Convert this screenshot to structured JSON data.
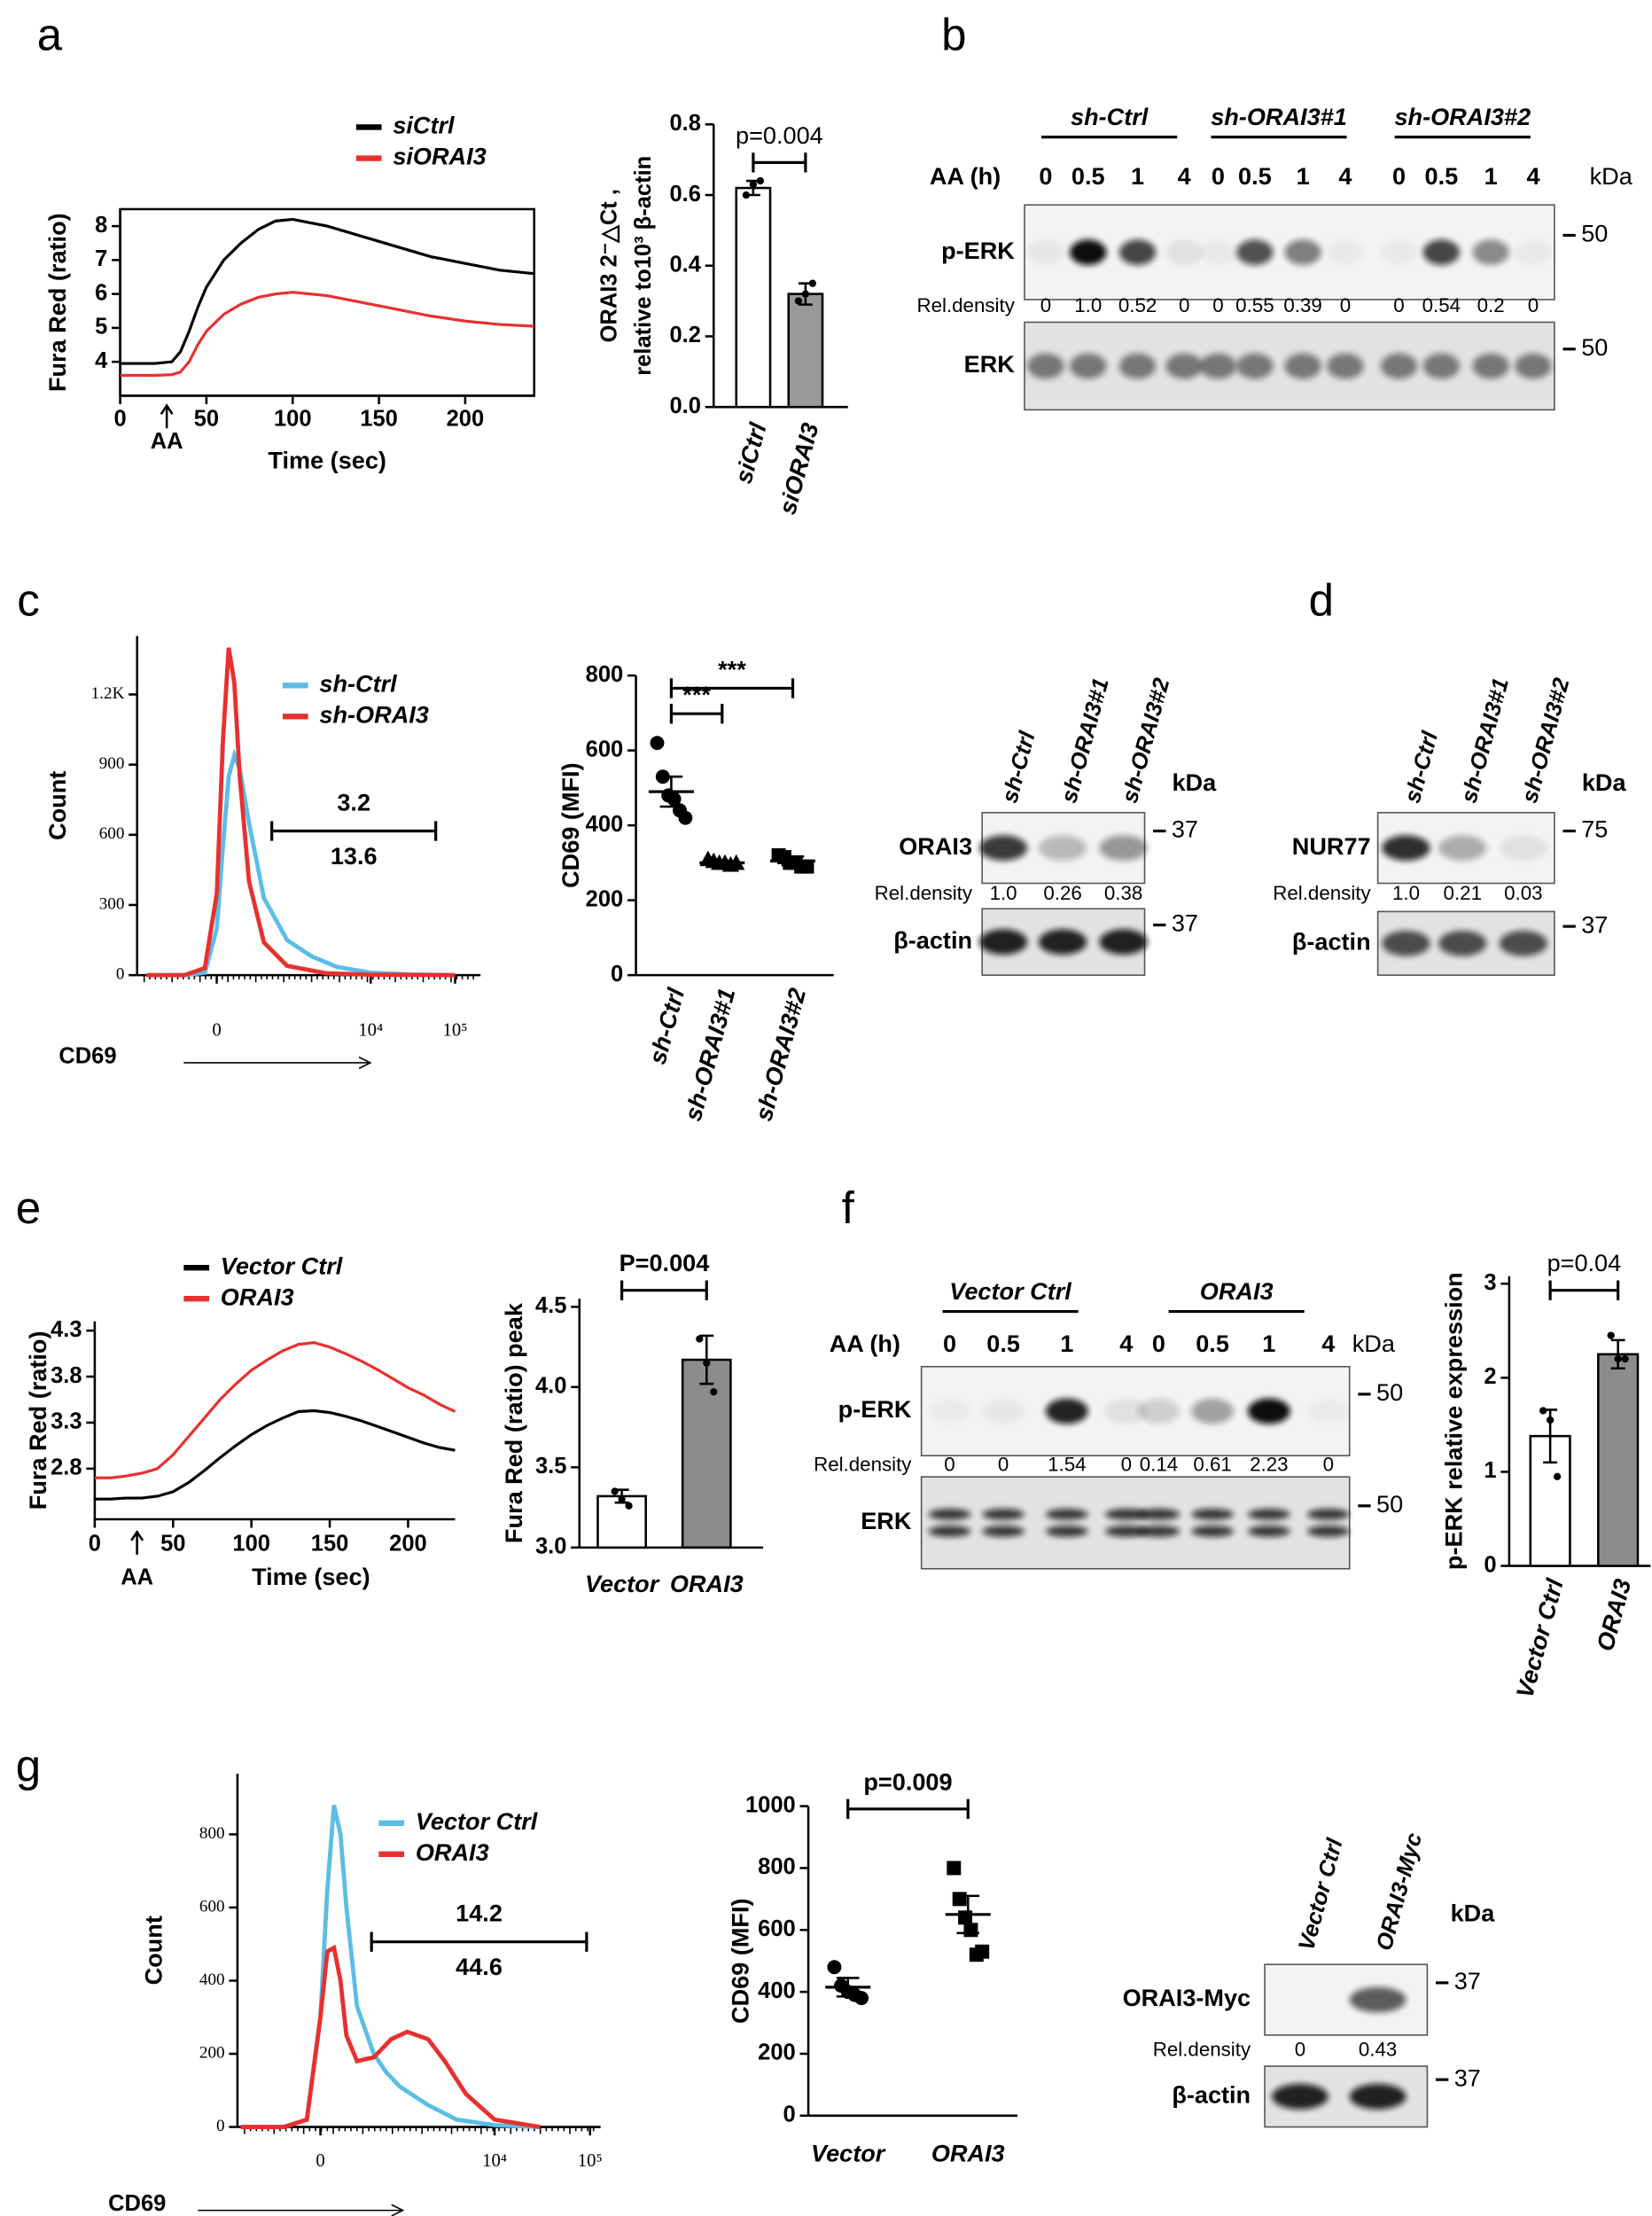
{
  "panels": [
    "a",
    "b",
    "c",
    "d",
    "e",
    "f",
    "g"
  ],
  "chart_data": [
    {
      "type": "line",
      "xlabel": "Time (sec)",
      "ylabel": "Fura Red (ratio)",
      "x": [
        0,
        10,
        20,
        30,
        35,
        40,
        45,
        50,
        60,
        70,
        80,
        90,
        100,
        110,
        120,
        140,
        160,
        180,
        200,
        220,
        240
      ],
      "series": [
        {
          "name": "siCtrl",
          "color": "#000000",
          "values": [
            3.95,
            3.95,
            3.95,
            4.0,
            4.3,
            4.9,
            5.6,
            6.2,
            7.0,
            7.5,
            7.9,
            8.15,
            8.2,
            8.1,
            8.0,
            7.7,
            7.4,
            7.1,
            6.9,
            6.7,
            6.6
          ]
        },
        {
          "name": "siORAI3",
          "color": "#e8302f",
          "values": [
            3.6,
            3.6,
            3.6,
            3.62,
            3.7,
            4.0,
            4.5,
            4.9,
            5.4,
            5.7,
            5.9,
            6.0,
            6.05,
            6.0,
            5.95,
            5.75,
            5.55,
            5.35,
            5.2,
            5.1,
            5.05
          ]
        }
      ],
      "xlim": [
        0,
        240
      ],
      "xticks": [
        0,
        50,
        100,
        150,
        200
      ],
      "ylim": [
        3.0,
        8.5
      ],
      "yticks": [
        4,
        5,
        6,
        7,
        8
      ],
      "annotations": [
        {
          "text": "AA",
          "x": 27
        }
      ]
    },
    {
      "type": "bar",
      "ylabel": [
        "ORAI3  2⁻△Ct ,",
        "relative to10³ β-actin"
      ],
      "categories": [
        "siCtrl",
        "siORAI3"
      ],
      "values": [
        0.62,
        0.32
      ],
      "errors": [
        0.02,
        0.03
      ],
      "points": [
        [
          0.6,
          0.63,
          0.64
        ],
        [
          0.3,
          0.32,
          0.35
        ]
      ],
      "colors": [
        "#ffffff",
        "#999999"
      ],
      "ylim": [
        0,
        0.8
      ],
      "yticks": [
        {
          "value": 0,
          "label": "0.0"
        },
        0.2,
        0.4,
        0.6,
        0.8
      ],
      "annotations": [
        "p=0.004"
      ]
    },
    {
      "type": "curve",
      "xlabel": "CD69",
      "ylabel": "Count",
      "xscale": "asinh",
      "xscale_cofactor": 300,
      "xlim": [
        -1300,
        200000
      ],
      "xticks": [
        0,
        {
          "value": 10000,
          "label": "10⁴"
        },
        {
          "value": 100000,
          "label": "10⁵"
        }
      ],
      "ylim": [
        0,
        1450
      ],
      "yticks": [
        0,
        300,
        600,
        900,
        {
          "value": 1200,
          "label": "1.2K"
        }
      ],
      "series": [
        {
          "name": "sh-Ctrl",
          "color": "#5bbde6",
          "x": [
            -1000,
            -300,
            -100,
            0,
            50,
            100,
            150,
            200,
            300,
            500,
            1000,
            2000,
            4000,
            10000,
            30000,
            100000
          ],
          "values": [
            0,
            0,
            10,
            200,
            550,
            850,
            940,
            880,
            650,
            330,
            150,
            80,
            35,
            10,
            3,
            0
          ]
        },
        {
          "name": "sh-ORAI3",
          "color": "#e8302f",
          "x": [
            -1000,
            -300,
            -100,
            0,
            50,
            100,
            150,
            200,
            300,
            500,
            1000,
            3000,
            10000,
            100000
          ],
          "values": [
            0,
            0,
            30,
            350,
            1000,
            1400,
            1250,
            850,
            400,
            140,
            40,
            8,
            2,
            0
          ]
        }
      ],
      "gate": {
        "range": [
          640,
          59000
        ],
        "labels": [
          "3.2",
          "13.6"
        ]
      }
    },
    {
      "type": "dot",
      "ylabel": "CD69 (MFI)",
      "categories": [
        "sh-Ctrl",
        "sh-ORAI3#1",
        "sh-ORAI3#2"
      ],
      "values": [
        490,
        300,
        305
      ],
      "errors": [
        40,
        5,
        12
      ],
      "points": [
        [
          620,
          530,
          480,
          470,
          440,
          420
        ],
        [
          310,
          305,
          300,
          300,
          295,
          300
        ],
        [
          320,
          315,
          300,
          300,
          290,
          290
        ]
      ],
      "ylim": [
        0,
        800
      ],
      "yticks": [
        0,
        200,
        400,
        600,
        800
      ],
      "annotations": [
        "***",
        "***"
      ]
    },
    {
      "type": "line",
      "xlabel": "Time (sec)",
      "ylabel": "Fura Red (ratio)",
      "x": [
        0,
        10,
        20,
        30,
        40,
        50,
        60,
        70,
        80,
        90,
        100,
        110,
        120,
        130,
        140,
        150,
        160,
        170,
        180,
        190,
        200,
        210,
        220,
        230
      ],
      "series": [
        {
          "name": "Vector Ctrl",
          "color": "#000000",
          "values": [
            2.47,
            2.47,
            2.48,
            2.48,
            2.5,
            2.55,
            2.65,
            2.78,
            2.92,
            3.05,
            3.17,
            3.27,
            3.35,
            3.42,
            3.43,
            3.41,
            3.37,
            3.32,
            3.26,
            3.2,
            3.14,
            3.08,
            3.03,
            3.0
          ]
        },
        {
          "name": "ORAI3",
          "color": "#e8302f",
          "values": [
            2.7,
            2.7,
            2.72,
            2.75,
            2.8,
            2.95,
            3.15,
            3.35,
            3.55,
            3.72,
            3.87,
            3.98,
            4.08,
            4.15,
            4.17,
            4.12,
            4.05,
            3.97,
            3.88,
            3.78,
            3.68,
            3.6,
            3.5,
            3.42
          ]
        }
      ],
      "xlim": [
        0,
        230
      ],
      "xticks": [
        0,
        50,
        100,
        150,
        200
      ],
      "ylim": [
        2.25,
        4.4
      ],
      "yticks": [
        2.8,
        3.3,
        3.8,
        4.3
      ],
      "annotations": [
        {
          "text": "AA",
          "x": 27
        }
      ]
    },
    {
      "type": "bar",
      "ylabel": "Fura Red (ratio) peak",
      "categories": [
        "Vector",
        "ORAI3"
      ],
      "values": [
        3.32,
        4.17
      ],
      "errors": [
        0.04,
        0.15
      ],
      "points": [
        [
          3.35,
          3.3,
          3.26
        ],
        [
          4.3,
          4.15,
          3.97
        ]
      ],
      "colors": [
        "#ffffff",
        "#8c8c8c"
      ],
      "ylim": [
        3.0,
        4.55
      ],
      "yticks": [
        {
          "value": 3,
          "label": "3.0"
        },
        3.5,
        {
          "value": 4,
          "label": "4.0"
        },
        4.5
      ],
      "annotations": [
        "P=0.004"
      ]
    },
    {
      "type": "bar",
      "ylabel": "p-ERK relative expression",
      "categories": [
        "Vector Ctrl",
        "ORAI3"
      ],
      "values": [
        1.38,
        2.25
      ],
      "errors": [
        0.28,
        0.15
      ],
      "points": [
        [
          1.65,
          1.55,
          0.95
        ],
        [
          2.45,
          2.2,
          2.2
        ]
      ],
      "colors": [
        "#ffffff",
        "#8c8c8c"
      ],
      "ylim": [
        0,
        3.08
      ],
      "yticks": [
        0,
        1,
        2,
        3
      ],
      "annotations": [
        "p=0.04"
      ]
    },
    {
      "type": "curve",
      "xlabel": "CD69",
      "ylabel": "Count",
      "xscale": "asinh",
      "xscale_cofactor": 300,
      "xlim": [
        -1090,
        129000
      ],
      "xticks": [
        0,
        {
          "value": 10000,
          "label": "10⁴"
        },
        {
          "value": 100000,
          "label": "10⁵"
        }
      ],
      "ylim": [
        0,
        966
      ],
      "yticks": [
        0,
        200,
        400,
        600,
        800
      ],
      "series": [
        {
          "name": "Vector Ctrl",
          "color": "#5bbde6",
          "x": [
            -1000,
            -300,
            -100,
            0,
            50,
            100,
            150,
            200,
            300,
            500,
            700,
            1000,
            2000,
            4000,
            10000,
            30000
          ],
          "values": [
            0,
            0,
            20,
            300,
            650,
            880,
            800,
            600,
            330,
            200,
            150,
            110,
            60,
            20,
            5,
            0
          ]
        },
        {
          "name": "ORAI3",
          "color": "#e8302f",
          "x": [
            -1000,
            -300,
            -100,
            0,
            50,
            100,
            150,
            200,
            300,
            500,
            800,
            1200,
            2000,
            3000,
            5000,
            10000,
            30000
          ],
          "values": [
            0,
            0,
            20,
            300,
            480,
            490,
            400,
            250,
            180,
            190,
            240,
            260,
            240,
            180,
            90,
            20,
            0
          ]
        }
      ],
      "gate": {
        "range": [
          470,
          92000
        ],
        "labels": [
          "14.2",
          "44.6"
        ]
      }
    },
    {
      "type": "dot",
      "ylabel": "CD69 (MFI)",
      "categories": [
        "Vector",
        "ORAI3"
      ],
      "values": [
        415,
        650
      ],
      "errors": [
        30,
        60
      ],
      "points": [
        [
          480,
          420,
          400,
          390,
          380
        ],
        [
          800,
          700,
          640,
          600,
          520,
          530
        ]
      ],
      "ylim": [
        0,
        1000
      ],
      "yticks": [
        0,
        200,
        400,
        600,
        800,
        1000
      ],
      "annotations": [
        "p=0.009"
      ]
    }
  ],
  "blots": [
    {
      "groups": [
        "sh-Ctrl",
        "sh-ORAI3#1",
        "sh-ORAI3#2"
      ],
      "lane_header": "AA (h)",
      "lanes": [
        "0",
        "0.5",
        "1",
        "4",
        "0",
        "0.5",
        "1",
        "4",
        "0",
        "0.5",
        "1",
        "4"
      ],
      "kda": "kDa",
      "rows": [
        {
          "label": "p-ERK",
          "marker": "50",
          "density_label": "Rel.density",
          "densities": [
            "0",
            "1.0",
            "0.52",
            "0",
            "0",
            "0.55",
            "0.39",
            "0",
            "0",
            "0.54",
            "0.2",
            "0"
          ]
        },
        {
          "label": "ERK",
          "marker": "50"
        }
      ]
    },
    {
      "lanes": [
        "sh-Ctrl",
        "sh-ORAI3#1",
        "sh-ORAI3#2"
      ],
      "kda": "kDa",
      "rows": [
        {
          "label": "ORAI3",
          "marker": "37",
          "density_label": "Rel.density",
          "densities": [
            "1.0",
            "0.26",
            "0.38"
          ]
        },
        {
          "label": "β-actin",
          "marker": "37"
        }
      ]
    },
    {
      "lanes": [
        "sh-Ctrl",
        "sh-ORAI3#1",
        "sh-ORAI3#2"
      ],
      "kda": "kDa",
      "rows": [
        {
          "label": "NUR77",
          "marker": "75",
          "density_label": "Rel.density",
          "densities": [
            "1.0",
            "0.21",
            "0.03"
          ]
        },
        {
          "label": "β-actin",
          "marker": "37"
        }
      ]
    },
    {
      "groups": [
        "Vector Ctrl",
        "ORAI3"
      ],
      "lane_header": "AA (h)",
      "lanes": [
        "0",
        "0.5",
        "1",
        "4",
        "0",
        "0.5",
        "1",
        "4"
      ],
      "kda": "kDa",
      "rows": [
        {
          "label": "p-ERK",
          "marker": "50",
          "density_label": "Rel.density",
          "densities": [
            "0",
            "0",
            "1.54",
            "0",
            "0.14",
            "0.61",
            "2.23",
            "0"
          ]
        },
        {
          "label": "ERK",
          "marker": "50"
        }
      ]
    },
    {
      "lanes": [
        "Vector Ctrl",
        "ORAI3-Myc"
      ],
      "kda": "kDa",
      "rows": [
        {
          "label": "ORAI3-Myc",
          "marker": "37",
          "density_label": "Rel.density",
          "densities": [
            "0",
            "0.43"
          ]
        },
        {
          "label": "β-actin",
          "marker": "37"
        }
      ]
    }
  ]
}
